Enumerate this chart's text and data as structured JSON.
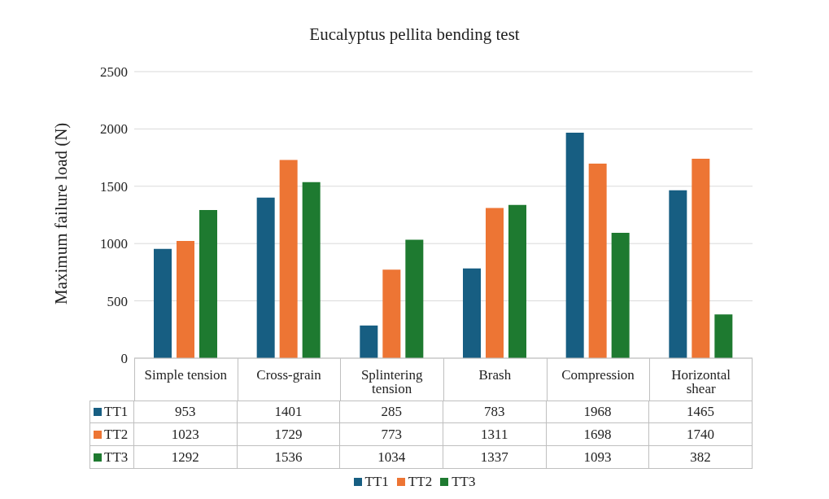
{
  "chart_data": {
    "type": "bar",
    "title": "Eucalyptus pellita bending test",
    "ylabel": "Maximum failure load (N)",
    "categories": [
      "Simple tension",
      "Cross-grain",
      "Splintering tension",
      "Brash",
      "Compression",
      "Horizontal shear"
    ],
    "series": [
      {
        "name": "TT1",
        "color": "#175e82",
        "values": [
          953,
          1401,
          285,
          783,
          1968,
          1465
        ]
      },
      {
        "name": "TT2",
        "color": "#ed7534",
        "values": [
          1023,
          1729,
          773,
          1311,
          1698,
          1740
        ]
      },
      {
        "name": "TT3",
        "color": "#1e7a30",
        "values": [
          1292,
          1536,
          1034,
          1337,
          1093,
          382
        ]
      }
    ],
    "ylim": [
      0,
      2500
    ],
    "yticks": [
      0,
      500,
      1000,
      1500,
      2000,
      2500
    ],
    "grid": "y",
    "legend": "bottom",
    "data_labels": true
  }
}
